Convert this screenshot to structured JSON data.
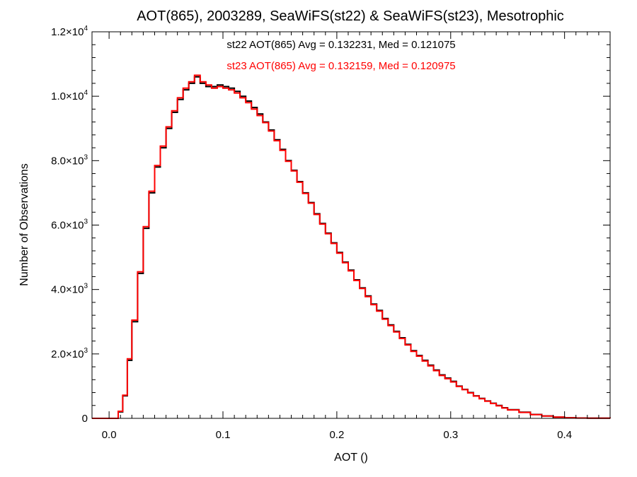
{
  "chart_data": {
    "type": "line",
    "title": "AOT(865), 2003289, SeaWiFS(st22) & SeaWiFS(st23), Mesotrophic",
    "xlabel": "AOT ()",
    "ylabel": "Number of Observations",
    "xlim": [
      -0.015,
      0.44
    ],
    "ylim": [
      0,
      12000
    ],
    "x_ticks": [
      {
        "value": 0.0,
        "label": "0.0"
      },
      {
        "value": 0.1,
        "label": "0.1"
      },
      {
        "value": 0.2,
        "label": "0.2"
      },
      {
        "value": 0.3,
        "label": "0.3"
      },
      {
        "value": 0.4,
        "label": "0.4"
      }
    ],
    "y_ticks": [
      {
        "value": 0,
        "mant": "0",
        "exp": ""
      },
      {
        "value": 2000,
        "mant": "2.0×10",
        "exp": "3"
      },
      {
        "value": 4000,
        "mant": "4.0×10",
        "exp": "3"
      },
      {
        "value": 6000,
        "mant": "6.0×10",
        "exp": "3"
      },
      {
        "value": 8000,
        "mant": "8.0×10",
        "exp": "3"
      },
      {
        "value": 10000,
        "mant": "1.0×10",
        "exp": "4"
      },
      {
        "value": 12000,
        "mant": "1.2×10",
        "exp": "4"
      }
    ],
    "grid": false,
    "annotations": [
      {
        "text": "st22 AOT(865) Avg = 0.132231, Med = 0.121075",
        "color": "#000000"
      },
      {
        "text": "st23 AOT(865) Avg = 0.132159, Med = 0.120975",
        "color": "#ff0000"
      }
    ],
    "series": [
      {
        "color": "#000000",
        "step": true,
        "x": [
          -0.015,
          0.008,
          0.012,
          0.016,
          0.02,
          0.025,
          0.03,
          0.035,
          0.04,
          0.045,
          0.05,
          0.055,
          0.06,
          0.065,
          0.07,
          0.075,
          0.08,
          0.085,
          0.09,
          0.095,
          0.1,
          0.105,
          0.11,
          0.115,
          0.12,
          0.125,
          0.13,
          0.135,
          0.14,
          0.145,
          0.15,
          0.155,
          0.16,
          0.165,
          0.17,
          0.175,
          0.18,
          0.185,
          0.19,
          0.195,
          0.2,
          0.205,
          0.21,
          0.215,
          0.22,
          0.225,
          0.23,
          0.235,
          0.24,
          0.245,
          0.25,
          0.255,
          0.26,
          0.265,
          0.27,
          0.275,
          0.28,
          0.285,
          0.29,
          0.295,
          0.3,
          0.305,
          0.31,
          0.315,
          0.32,
          0.325,
          0.33,
          0.335,
          0.34,
          0.345,
          0.35,
          0.36,
          0.37,
          0.38,
          0.39,
          0.4,
          0.41,
          0.42,
          0.44
        ],
        "y": [
          0,
          200,
          700,
          1800,
          3000,
          4500,
          5900,
          7000,
          7800,
          8400,
          9000,
          9500,
          9900,
          10200,
          10400,
          10600,
          10400,
          10300,
          10300,
          10350,
          10300,
          10250,
          10150,
          10000,
          9850,
          9650,
          9450,
          9200,
          8950,
          8650,
          8350,
          8000,
          7700,
          7350,
          7000,
          6700,
          6350,
          6050,
          5750,
          5450,
          5150,
          4850,
          4600,
          4300,
          4050,
          3800,
          3550,
          3350,
          3100,
          2900,
          2700,
          2500,
          2300,
          2100,
          1950,
          1800,
          1650,
          1500,
          1350,
          1250,
          1150,
          1000,
          900,
          800,
          700,
          620,
          540,
          470,
          400,
          330,
          270,
          190,
          120,
          75,
          40,
          20,
          10,
          5,
          0
        ]
      },
      {
        "color": "#ff0000",
        "step": true,
        "x": [
          -0.015,
          0.008,
          0.012,
          0.016,
          0.02,
          0.025,
          0.03,
          0.035,
          0.04,
          0.045,
          0.05,
          0.055,
          0.06,
          0.065,
          0.07,
          0.075,
          0.08,
          0.085,
          0.09,
          0.095,
          0.1,
          0.105,
          0.11,
          0.115,
          0.12,
          0.125,
          0.13,
          0.135,
          0.14,
          0.145,
          0.15,
          0.155,
          0.16,
          0.165,
          0.17,
          0.175,
          0.18,
          0.185,
          0.19,
          0.195,
          0.2,
          0.205,
          0.21,
          0.215,
          0.22,
          0.225,
          0.23,
          0.235,
          0.24,
          0.245,
          0.25,
          0.255,
          0.26,
          0.265,
          0.27,
          0.275,
          0.28,
          0.285,
          0.29,
          0.295,
          0.3,
          0.305,
          0.31,
          0.315,
          0.32,
          0.325,
          0.33,
          0.335,
          0.34,
          0.345,
          0.35,
          0.36,
          0.37,
          0.38,
          0.39,
          0.4,
          0.41,
          0.42,
          0.44
        ],
        "y": [
          0,
          220,
          720,
          1850,
          3050,
          4550,
          5950,
          7050,
          7850,
          8450,
          9050,
          9550,
          9950,
          10250,
          10450,
          10650,
          10450,
          10350,
          10250,
          10300,
          10250,
          10200,
          10100,
          9950,
          9800,
          9600,
          9400,
          9180,
          8920,
          8620,
          8320,
          7980,
          7680,
          7330,
          6980,
          6680,
          6330,
          6030,
          5730,
          5430,
          5130,
          4830,
          4580,
          4280,
          4030,
          3780,
          3530,
          3330,
          3080,
          2880,
          2680,
          2480,
          2280,
          2080,
          1930,
          1780,
          1630,
          1480,
          1330,
          1230,
          1130,
          990,
          890,
          790,
          690,
          610,
          530,
          460,
          390,
          320,
          260,
          185,
          115,
          72,
          38,
          18,
          9,
          4,
          0
        ]
      }
    ]
  }
}
